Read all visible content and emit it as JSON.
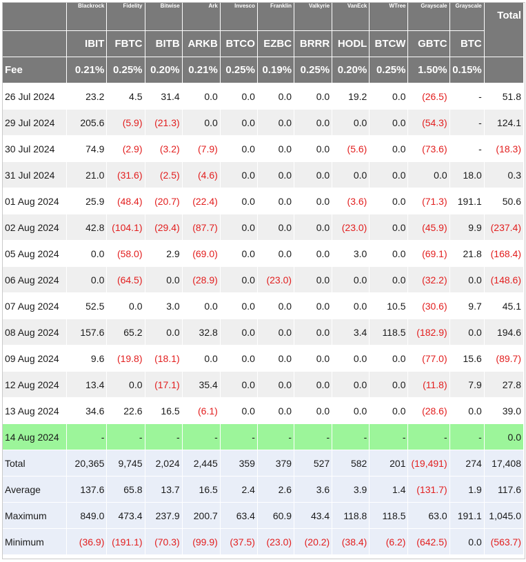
{
  "table": {
    "issuers": [
      "Blackrock",
      "Fidelity",
      "Bitwise",
      "Ark",
      "Invesco",
      "Franklin",
      "Valkyrie",
      "VanEck",
      "WTree",
      "Grayscale",
      "Grayscale"
    ],
    "total_header": "Total",
    "tickers": [
      "IBIT",
      "FBTC",
      "BITB",
      "ARKB",
      "BTCO",
      "EZBC",
      "BRRR",
      "HODL",
      "BTCW",
      "GBTC",
      "BTC"
    ],
    "fee_label": "Fee",
    "fees": [
      "0.21%",
      "0.25%",
      "0.20%",
      "0.21%",
      "0.25%",
      "0.19%",
      "0.25%",
      "0.20%",
      "0.25%",
      "1.50%",
      "0.15%"
    ],
    "rows": [
      {
        "date": "26 Jul 2024",
        "values": [
          "23.2",
          "4.5",
          "31.4",
          "0.0",
          "0.0",
          "0.0",
          "0.0",
          "19.2",
          "0.0",
          "(26.5)",
          "-"
        ],
        "total": "51.8"
      },
      {
        "date": "29 Jul 2024",
        "values": [
          "205.6",
          "(5.9)",
          "(21.3)",
          "0.0",
          "0.0",
          "0.0",
          "0.0",
          "0.0",
          "0.0",
          "(54.3)",
          "-"
        ],
        "total": "124.1"
      },
      {
        "date": "30 Jul 2024",
        "values": [
          "74.9",
          "(2.9)",
          "(3.2)",
          "(7.9)",
          "0.0",
          "0.0",
          "0.0",
          "(5.6)",
          "0.0",
          "(73.6)",
          "-"
        ],
        "total": "(18.3)"
      },
      {
        "date": "31 Jul 2024",
        "values": [
          "21.0",
          "(31.6)",
          "(2.5)",
          "(4.6)",
          "0.0",
          "0.0",
          "0.0",
          "0.0",
          "0.0",
          "0.0",
          "18.0"
        ],
        "total": "0.3"
      },
      {
        "date": "01 Aug 2024",
        "values": [
          "25.9",
          "(48.4)",
          "(20.7)",
          "(22.4)",
          "0.0",
          "0.0",
          "0.0",
          "(3.6)",
          "0.0",
          "(71.3)",
          "191.1"
        ],
        "total": "50.6"
      },
      {
        "date": "02 Aug 2024",
        "values": [
          "42.8",
          "(104.1)",
          "(29.4)",
          "(87.7)",
          "0.0",
          "0.0",
          "0.0",
          "(23.0)",
          "0.0",
          "(45.9)",
          "9.9"
        ],
        "total": "(237.4)"
      },
      {
        "date": "05 Aug 2024",
        "values": [
          "0.0",
          "(58.0)",
          "2.9",
          "(69.0)",
          "0.0",
          "0.0",
          "0.0",
          "3.0",
          "0.0",
          "(69.1)",
          "21.8"
        ],
        "total": "(168.4)"
      },
      {
        "date": "06 Aug 2024",
        "values": [
          "0.0",
          "(64.5)",
          "0.0",
          "(28.9)",
          "0.0",
          "(23.0)",
          "0.0",
          "0.0",
          "0.0",
          "(32.2)",
          "0.0"
        ],
        "total": "(148.6)"
      },
      {
        "date": "07 Aug 2024",
        "values": [
          "52.5",
          "0.0",
          "3.0",
          "0.0",
          "0.0",
          "0.0",
          "0.0",
          "0.0",
          "10.5",
          "(30.6)",
          "9.7"
        ],
        "total": "45.1"
      },
      {
        "date": "08 Aug 2024",
        "values": [
          "157.6",
          "65.2",
          "0.0",
          "32.8",
          "0.0",
          "0.0",
          "0.0",
          "3.4",
          "118.5",
          "(182.9)",
          "0.0"
        ],
        "total": "194.6"
      },
      {
        "date": "09 Aug 2024",
        "values": [
          "9.6",
          "(19.8)",
          "(18.1)",
          "0.0",
          "0.0",
          "0.0",
          "0.0",
          "0.0",
          "0.0",
          "(77.0)",
          "15.6"
        ],
        "total": "(89.7)"
      },
      {
        "date": "12 Aug 2024",
        "values": [
          "13.4",
          "0.0",
          "(17.1)",
          "35.4",
          "0.0",
          "0.0",
          "0.0",
          "0.0",
          "0.0",
          "(11.8)",
          "7.9"
        ],
        "total": "27.8"
      },
      {
        "date": "13 Aug 2024",
        "values": [
          "34.6",
          "22.6",
          "16.5",
          "(6.1)",
          "0.0",
          "0.0",
          "0.0",
          "0.0",
          "0.0",
          "(28.6)",
          "0.0"
        ],
        "total": "39.0"
      },
      {
        "date": "14 Aug 2024",
        "values": [
          "-",
          "-",
          "-",
          "-",
          "-",
          "-",
          "-",
          "-",
          "-",
          "-",
          "-"
        ],
        "total": "0.0",
        "highlight": true
      }
    ],
    "summary": [
      {
        "label": "Total",
        "values": [
          "20,365",
          "9,745",
          "2,024",
          "2,445",
          "359",
          "379",
          "527",
          "582",
          "201",
          "(19,491)",
          "274"
        ],
        "total": "17,408"
      },
      {
        "label": "Average",
        "values": [
          "137.6",
          "65.8",
          "13.7",
          "16.5",
          "2.4",
          "2.6",
          "3.6",
          "3.9",
          "1.4",
          "(131.7)",
          "1.9"
        ],
        "total": "117.6"
      },
      {
        "label": "Maximum",
        "values": [
          "849.0",
          "473.4",
          "237.9",
          "200.7",
          "63.4",
          "60.9",
          "43.4",
          "118.8",
          "118.5",
          "63.0",
          "191.1"
        ],
        "total": "1,045.0"
      },
      {
        "label": "Minimum",
        "values": [
          "(36.9)",
          "(191.1)",
          "(70.3)",
          "(99.9)",
          "(37.5)",
          "(23.0)",
          "(20.2)",
          "(38.4)",
          "(6.2)",
          "(642.5)",
          "0.0"
        ],
        "total": "(563.7)"
      }
    ],
    "colors": {
      "header_bg": "#7a7a7a",
      "negative": "#e21d1d",
      "highlight_row": "#9cf59a",
      "summary_bg": "#e9eef8",
      "stripe": "#efefef"
    }
  }
}
